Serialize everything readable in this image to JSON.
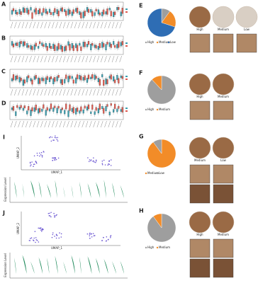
{
  "boxplot_panels": [
    {
      "label": "A"
    },
    {
      "label": "B"
    },
    {
      "label": "C"
    },
    {
      "label": "D"
    }
  ],
  "umap_panels": [
    {
      "label": "I",
      "x_label": "UMAP_1",
      "y_label": "UMAP_2",
      "violin_y_label": "Expression Level"
    },
    {
      "label": "J",
      "x_label": "UMAP_1",
      "y_label": "UMAP_2",
      "violin_y_label": "Expression Level"
    }
  ],
  "staining_panels": [
    {
      "label": "E",
      "pie": {
        "names": [
          "High",
          "Medium",
          "Low"
        ],
        "values": [
          10,
          20,
          70
        ],
        "colors": [
          "#9e9e9e",
          "#f28c28",
          "#2e6db4"
        ]
      },
      "images": [
        "High",
        "Medium",
        "Low"
      ]
    },
    {
      "label": "F",
      "pie": {
        "names": [
          "High",
          "Medium"
        ],
        "values": [
          88,
          12
        ],
        "colors": [
          "#9e9e9e",
          "#f28c28"
        ]
      },
      "images": [
        "High",
        "Medium"
      ]
    },
    {
      "label": "G",
      "pie": {
        "names": [
          "Medium",
          "Low"
        ],
        "values": [
          90,
          10
        ],
        "colors": [
          "#f28c28",
          "#9e9e9e"
        ]
      },
      "images": [
        "Medium",
        "Low"
      ]
    },
    {
      "label": "H",
      "pie": {
        "names": [
          "High",
          "Medium"
        ],
        "values": [
          90,
          10
        ],
        "colors": [
          "#9e9e9e",
          "#f28c28"
        ]
      },
      "images": [
        "High",
        "Medium"
      ]
    }
  ]
}
